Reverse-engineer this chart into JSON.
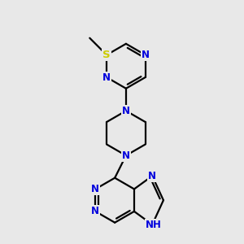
{
  "bg_color": "#e8e8e8",
  "bond_color": "#000000",
  "N_color": "#0000dd",
  "S_color": "#cccc00",
  "line_width": 1.6,
  "font_size": 8.5,
  "fig_size": [
    3.0,
    3.0
  ],
  "dpi": 100,
  "xlim": [
    0,
    300
  ],
  "ylim": [
    0,
    300
  ]
}
